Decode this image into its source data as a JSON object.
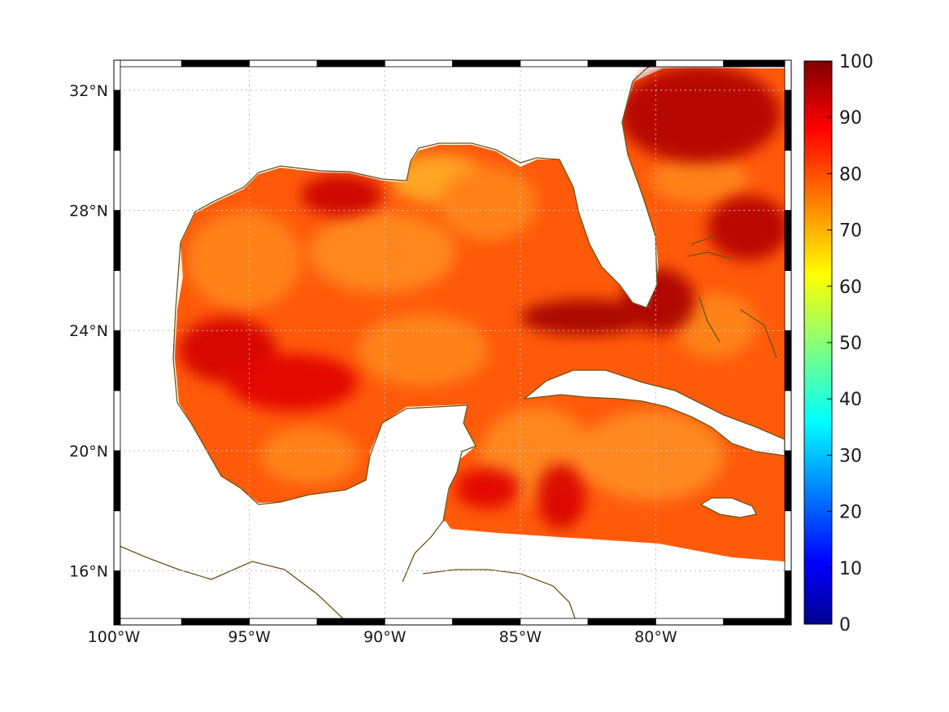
{
  "map": {
    "projection": "equirectangular",
    "lon_range": [
      -100,
      -75
    ],
    "lat_range": [
      14.2,
      33
    ],
    "lon_ticks": [
      {
        "value": -100,
        "label": "100°W"
      },
      {
        "value": -95,
        "label": "95°W"
      },
      {
        "value": -90,
        "label": "90°W"
      },
      {
        "value": -85,
        "label": "85°W"
      },
      {
        "value": -80,
        "label": "80°W"
      }
    ],
    "lat_ticks": [
      {
        "value": 16,
        "label": "16°N"
      },
      {
        "value": 20,
        "label": "20°N"
      },
      {
        "value": 24,
        "label": "24°N"
      },
      {
        "value": 28,
        "label": "28°N"
      },
      {
        "value": 32,
        "label": "32°N"
      }
    ],
    "grid": true,
    "coastline_color": "#6b5417",
    "land_color": "#ffffff"
  },
  "colorbar": {
    "colormap": "jet",
    "range": [
      0,
      100
    ],
    "ticks": [
      {
        "value": 0,
        "label": "0"
      },
      {
        "value": 10,
        "label": "10"
      },
      {
        "value": 20,
        "label": "20"
      },
      {
        "value": 30,
        "label": "30"
      },
      {
        "value": 40,
        "label": "40"
      },
      {
        "value": 50,
        "label": "50"
      },
      {
        "value": 60,
        "label": "60"
      },
      {
        "value": 70,
        "label": "70"
      },
      {
        "value": 80,
        "label": "80"
      },
      {
        "value": 90,
        "label": "90"
      },
      {
        "value": 100,
        "label": "100"
      }
    ]
  },
  "field": {
    "description_values": "scalar field 0-100 mostly in 75-95 range over Gulf of Mexico and western Caribbean",
    "regions": [
      {
        "name": "western-gulf",
        "value": 82
      },
      {
        "name": "north-central-gulf-dark",
        "value": 90
      },
      {
        "name": "florida-straits-dark",
        "value": 94
      },
      {
        "name": "atlantic-east-florida",
        "value": 92
      },
      {
        "name": "caribbean",
        "value": 80
      },
      {
        "name": "mississippi-delta-max",
        "value": 70
      }
    ]
  }
}
